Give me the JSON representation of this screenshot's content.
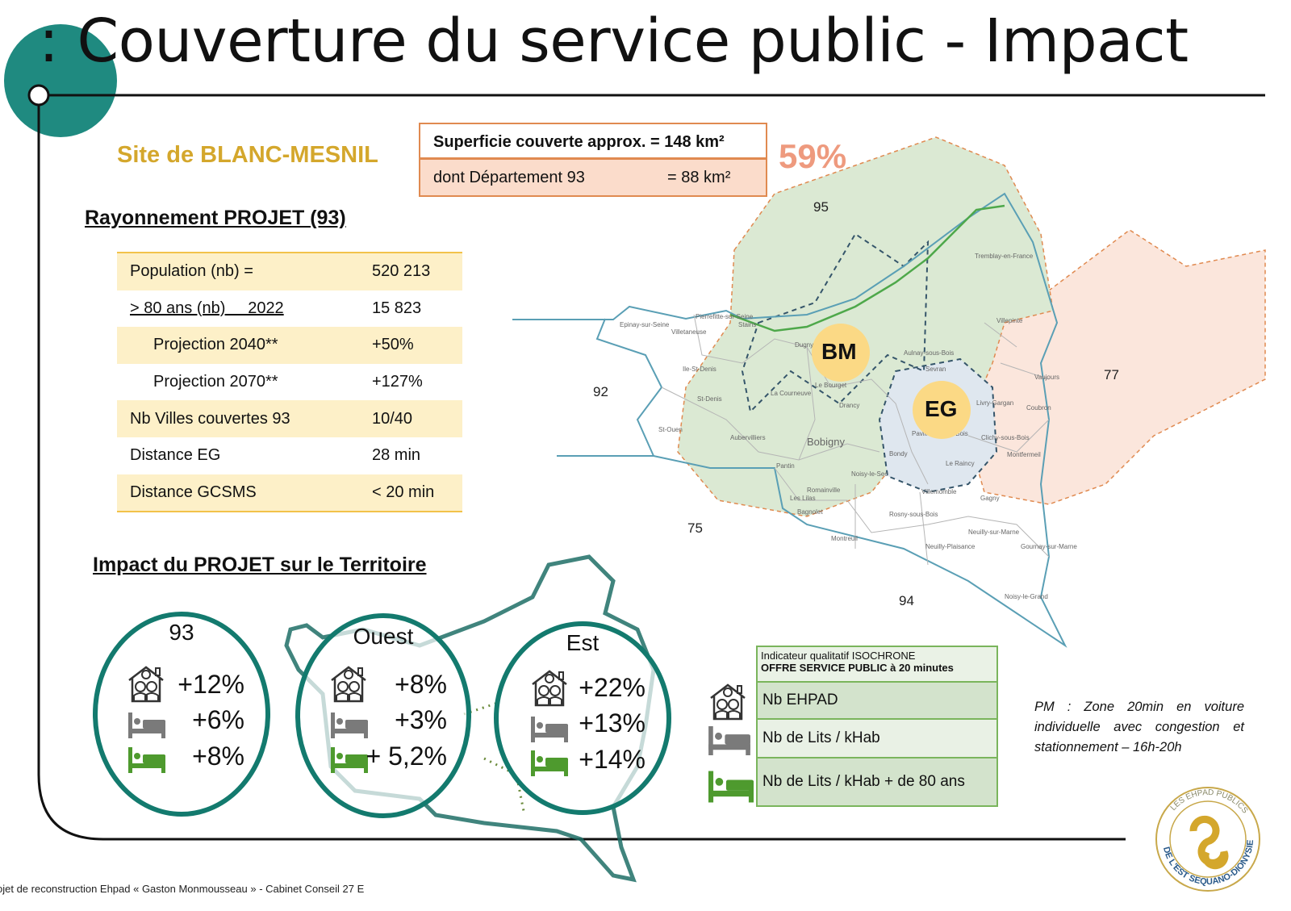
{
  "title": ": Couverture du service public - Impact",
  "site": "Site de BLANC-MESNIL",
  "superficie": {
    "row1": "Superficie couverte approx. = 148 km²",
    "row2_label": "dont Département 93",
    "row2_value": "= 88 km²",
    "percent": "59%"
  },
  "rayonnement": {
    "heading": "Rayonnement PROJET (93)",
    "rows": [
      {
        "label": "Population (nb) =",
        "value": "520 213"
      },
      {
        "label": "> 80 ans (nb)     2022",
        "value": "15 823"
      },
      {
        "label": "Projection 2040**",
        "value": "+50%"
      },
      {
        "label": "Projection 2070**",
        "value": "+127%"
      },
      {
        "label": "Nb Villes couvertes 93",
        "value": "10/40"
      },
      {
        "label": "Distance EG",
        "value": "28 min"
      },
      {
        "label": "Distance GCSMS",
        "value": "< 20 min"
      }
    ]
  },
  "impact": {
    "heading": "Impact du PROJET sur le Territoire",
    "zones": [
      {
        "name": "93",
        "ehpad": "+12%",
        "lits": "+6%",
        "lits80": "+8%"
      },
      {
        "name": "Ouest",
        "ehpad": "+8%",
        "lits": "+3%",
        "lits80": "+ 5,2%"
      },
      {
        "name": "Est",
        "ehpad": "+22%",
        "lits": "+13%",
        "lits80": "+14%"
      }
    ]
  },
  "legend": {
    "header1": "Indicateur qualitatif ISOCHRONE",
    "header2": "OFFRE SERVICE PUBLIC à 20 minutes",
    "items": [
      {
        "icon": "ehpad-house-icon",
        "label": "Nb EHPAD"
      },
      {
        "icon": "bed-gray-icon",
        "label": "Nb de Lits / kHab"
      },
      {
        "icon": "bed-green-icon",
        "label": "Nb de Lits  / kHab + de 80 ans"
      }
    ]
  },
  "note": "PM : Zone 20min en voiture individuelle avec congestion et stationnement – 16h-20h",
  "map": {
    "departments": [
      "95",
      "92",
      "75",
      "94",
      "77"
    ],
    "sites": [
      "BM",
      "EG"
    ],
    "cities": [
      "Epinay-sur-Seine",
      "Villetaneuse",
      "Pierrefitte-sur-Seine",
      "Stains",
      "Dugny",
      "Ile-St-Denis",
      "St-Denis",
      "Le Bourget",
      "La Courneuve",
      "Drancy",
      "St-Ouen",
      "Aubervilliers",
      "Bobigny",
      "Pantin",
      "Noisy-le-Sec",
      "Romainville",
      "Les Lilas",
      "Bagnolet",
      "Montreuil",
      "Rosny-sous-Bois",
      "Neuilly-Plaisance",
      "Neuilly-sur-Marne",
      "Villemomble",
      "Gagny",
      "Bondy",
      "Pavillons-sous-Bois",
      "Le Raincy",
      "Sevran",
      "Livry-Gargan",
      "Clichy-sous-Bois",
      "Montfermeil",
      "Coubron",
      "Vaujours",
      "Villepinte",
      "Tremblay-en-France",
      "Aulnay-sous-Bois",
      "Gournay-sur-Marne",
      "Noisy-le-Grand"
    ]
  },
  "logo_text": "LES EHPAD PUBLICS DE L'EST SEQUANO-DIONYSIEN",
  "footer": "ojet de reconstruction Ehpad « Gaston Monmousseau » - Cabinet Conseil 27 E",
  "colors": {
    "teal": "#1f8a80",
    "gold": "#d4a72c",
    "orange": "#e08a50",
    "salmon": "#ee9a7e",
    "green": "#4e9a2e",
    "sites": "#fbd985"
  }
}
